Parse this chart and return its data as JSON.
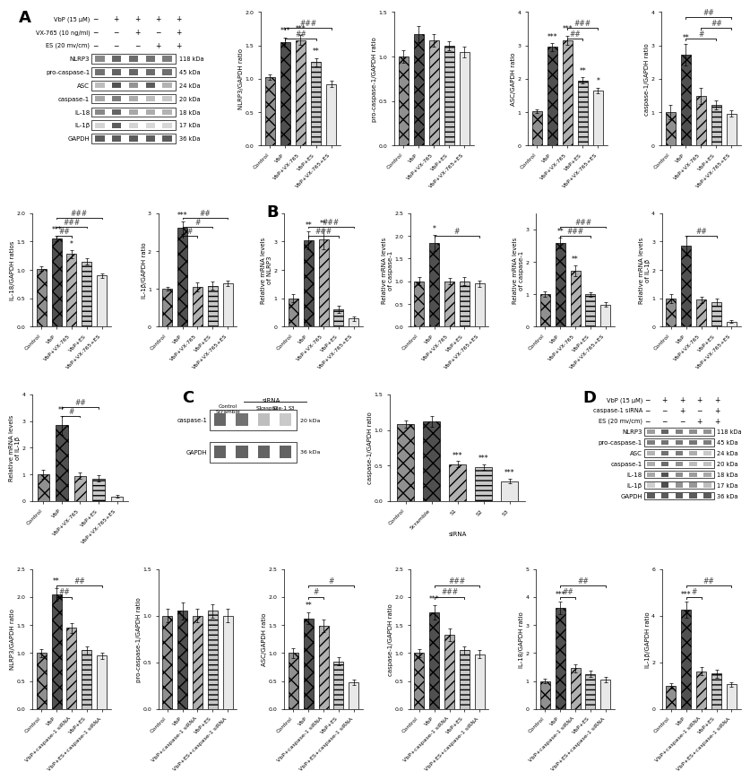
{
  "treatment_rows_A": [
    "VbP (15 μM)",
    "VX-765 (10 ng/ml)",
    "ES (20 mv/cm)"
  ],
  "treatment_signs_A": [
    [
      "−",
      "+",
      "+",
      "+",
      "+"
    ],
    [
      "−",
      "−",
      "+",
      "−",
      "+"
    ],
    [
      "−",
      "−",
      "−",
      "+",
      "+"
    ]
  ],
  "wb_labels_A": [
    "NLRP3",
    "pro-caspase-1",
    "ASC",
    "caspase-1",
    "IL-18",
    "IL-1β",
    "GAPDH"
  ],
  "wb_kdas_A": [
    "118 kDa",
    "45 kDa",
    "24 kDa",
    "20 kDa",
    "18 kDa",
    "17 kDa",
    "36 kDa"
  ],
  "cats5": [
    "Control",
    "VbP",
    "VbP+VX-765",
    "VbP+ES",
    "VbP+VX-765+ES"
  ],
  "NLRP3_vals": [
    1.02,
    1.55,
    1.58,
    1.25,
    0.92
  ],
  "NLRP3_errs": [
    0.04,
    0.07,
    0.07,
    0.06,
    0.05
  ],
  "NLRP3_ylim": [
    0.0,
    2.0
  ],
  "NLRP3_yticks": [
    0.0,
    0.5,
    1.0,
    1.5,
    2.0
  ],
  "NLRP3_ylabel": "NLRP3/GAPDH ratio",
  "NLRP3_sig_above": [
    [
      1,
      "***"
    ],
    [
      2,
      "***"
    ],
    [
      3,
      "**"
    ]
  ],
  "NLRP3_brackets": [
    [
      1,
      3,
      "##"
    ],
    [
      1,
      4,
      "###"
    ]
  ],
  "procasp1_vals": [
    1.0,
    1.25,
    1.18,
    1.12,
    1.05
  ],
  "procasp1_errs": [
    0.07,
    0.09,
    0.07,
    0.05,
    0.06
  ],
  "procasp1_ylim": [
    0.0,
    1.5
  ],
  "procasp1_yticks": [
    0.0,
    0.5,
    1.0,
    1.5
  ],
  "procasp1_ylabel": "pro-caspase-1/GAPDH ratio",
  "procasp1_sig_above": [],
  "procasp1_brackets": [],
  "ASC_vals": [
    1.02,
    2.95,
    3.15,
    1.95,
    1.65
  ],
  "ASC_errs": [
    0.05,
    0.11,
    0.14,
    0.09,
    0.08
  ],
  "ASC_ylim": [
    0.0,
    4.0
  ],
  "ASC_yticks": [
    0,
    1,
    2,
    3,
    4
  ],
  "ASC_ylabel": "ASC/GAPDH ratio",
  "ASC_sig_above": [
    [
      1,
      "***"
    ],
    [
      2,
      "***"
    ],
    [
      3,
      "**"
    ],
    [
      4,
      "*"
    ]
  ],
  "ASC_brackets": [
    [
      2,
      3,
      "##"
    ],
    [
      2,
      4,
      "###"
    ]
  ],
  "casp1A_vals": [
    1.0,
    2.72,
    1.48,
    1.22,
    0.95
  ],
  "casp1A_errs": [
    0.22,
    0.32,
    0.25,
    0.13,
    0.09
  ],
  "casp1A_ylim": [
    0.0,
    4.0
  ],
  "casp1A_yticks": [
    0,
    1,
    2,
    3,
    4
  ],
  "casp1A_ylabel": "caspase-1/GAPDH ratio",
  "casp1A_sig_above": [
    [
      1,
      "**"
    ]
  ],
  "casp1A_brackets": [
    [
      1,
      3,
      "#"
    ],
    [
      2,
      4,
      "##"
    ],
    [
      1,
      4,
      "##"
    ]
  ],
  "IL18_vals": [
    1.02,
    1.55,
    1.28,
    1.15,
    0.9
  ],
  "IL18_errs": [
    0.04,
    0.05,
    0.07,
    0.06,
    0.04
  ],
  "IL18_ylim": [
    0.0,
    2.0
  ],
  "IL18_yticks": [
    0.0,
    0.5,
    1.0,
    1.5,
    2.0
  ],
  "IL18_ylabel": "IL-18/GAPDH ratios",
  "IL18_sig_above": [
    [
      1,
      "***"
    ],
    [
      2,
      "*"
    ]
  ],
  "IL18_brackets": [
    [
      1,
      2,
      "##"
    ],
    [
      1,
      3,
      "###"
    ],
    [
      1,
      4,
      "###"
    ]
  ],
  "IL1b_vals": [
    1.0,
    2.62,
    1.05,
    1.08,
    1.15
  ],
  "IL1b_errs": [
    0.04,
    0.16,
    0.11,
    0.11,
    0.07
  ],
  "IL1b_ylim": [
    0.0,
    3.0
  ],
  "IL1b_yticks": [
    0,
    1,
    2,
    3
  ],
  "IL1b_ylabel": "IL-1β/GAPDH ratio",
  "IL1b_sig_above": [
    [
      1,
      "***"
    ]
  ],
  "IL1b_brackets": [
    [
      1,
      2,
      "#"
    ],
    [
      1,
      3,
      "#"
    ],
    [
      1,
      4,
      "##"
    ]
  ],
  "mNLRP3_vals": [
    1.0,
    3.05,
    3.08,
    0.62,
    0.28
  ],
  "mNLRP3_errs": [
    0.15,
    0.32,
    0.35,
    0.13,
    0.07
  ],
  "mNLRP3_ylim": [
    0.0,
    4.0
  ],
  "mNLRP3_yticks": [
    0,
    1,
    2,
    3,
    4
  ],
  "mNLRP3_ylabel": "Relative mRNA levels\nof NLRP3",
  "mNLRP3_sig_above": [
    [
      1,
      "**"
    ],
    [
      2,
      "**"
    ]
  ],
  "mNLRP3_brackets": [
    [
      1,
      3,
      "###"
    ],
    [
      1,
      4,
      "###"
    ]
  ],
  "mcasp1_vals": [
    1.0,
    1.85,
    1.0,
    1.0,
    0.95
  ],
  "mcasp1_errs": [
    0.09,
    0.18,
    0.07,
    0.09,
    0.07
  ],
  "mcasp1_ylim": [
    0.0,
    2.5
  ],
  "mcasp1_yticks": [
    0.0,
    0.5,
    1.0,
    1.5,
    2.0,
    2.5
  ],
  "mcasp1_ylabel": "Relative mRNA levels\nof caspase-1",
  "mcasp1_sig_above": [
    [
      1,
      "*"
    ]
  ],
  "mcasp1_brackets": [
    [
      1,
      4,
      "#"
    ]
  ],
  "mIL18_vals": [
    1.0,
    2.58,
    1.72,
    1.0,
    0.68
  ],
  "mIL18_errs": [
    0.09,
    0.16,
    0.16,
    0.07,
    0.07
  ],
  "mIL18_ylim": [
    0.0,
    3.5
  ],
  "mIL18_yticks": [
    0,
    1,
    2,
    3
  ],
  "mIL18_ylabel": "Relative mRNA levels\nof caspase-1",
  "mIL18_sig_above": [
    [
      1,
      "**"
    ],
    [
      2,
      "**"
    ]
  ],
  "mIL18_brackets": [
    [
      1,
      3,
      "###"
    ],
    [
      1,
      4,
      "###"
    ]
  ],
  "mIL1b_vals": [
    1.0,
    2.85,
    0.95,
    0.85,
    0.18
  ],
  "mIL1b_errs": [
    0.16,
    0.35,
    0.11,
    0.13,
    0.04
  ],
  "mIL1b_ylim": [
    0.0,
    4.0
  ],
  "mIL1b_yticks": [
    0,
    1,
    2,
    3,
    4
  ],
  "mIL1b_ylabel": "Relative mRNA levels\nof IL-1β",
  "mIL1b_sig_above": [],
  "mIL1b_brackets": [
    [
      1,
      3,
      "##"
    ]
  ],
  "mIL1b2_vals": [
    1.0,
    2.85,
    0.95,
    0.85,
    0.18
  ],
  "mIL1b2_errs": [
    0.16,
    0.35,
    0.11,
    0.13,
    0.04
  ],
  "mIL1b2_ylim": [
    0.0,
    4.0
  ],
  "mIL1b2_yticks": [
    0,
    1,
    2,
    3,
    4
  ],
  "mIL1b2_ylabel": "Relative mRNA levels\nof IL-1β",
  "mIL1b2_sig_above": [
    [
      1,
      "**"
    ]
  ],
  "mIL1b2_brackets": [
    [
      1,
      2,
      "#"
    ],
    [
      1,
      3,
      "##"
    ]
  ],
  "siRNA_cats": [
    "Control",
    "Scramble",
    "S1",
    "S2",
    "S3"
  ],
  "siRNA_vals": [
    1.08,
    1.12,
    0.52,
    0.48,
    0.28
  ],
  "siRNA_errs": [
    0.05,
    0.07,
    0.04,
    0.04,
    0.03
  ],
  "siRNA_ylim": [
    0.0,
    1.5
  ],
  "siRNA_yticks": [
    0.0,
    0.5,
    1.0,
    1.5
  ],
  "siRNA_ylabel": "caspase-1/GAPDH ratio",
  "siRNA_sig_above": [
    [
      2,
      "***"
    ],
    [
      3,
      "***"
    ],
    [
      4,
      "***"
    ]
  ],
  "siRNA_brackets": [],
  "treatment_rows_D": [
    "VbP (15 μM)",
    "caspase-1 siRNA",
    "ES (20 mv/cm)"
  ],
  "treatment_signs_D": [
    [
      "−",
      "+",
      "+",
      "+",
      "+"
    ],
    [
      "−",
      "−",
      "+",
      "−",
      "+"
    ],
    [
      "−",
      "−",
      "−",
      "+",
      "+"
    ]
  ],
  "wb_labels_D": [
    "NLRP3",
    "pro-caspase-1",
    "ASC",
    "caspase-1",
    "IL-18",
    "IL-1β",
    "GAPDH"
  ],
  "wb_kdas_D": [
    "118 kDa",
    "45 kDa",
    "24 kDa",
    "20 kDa",
    "18 kDa",
    "17 kDa",
    "36 kDa"
  ],
  "catsD": [
    "Control",
    "VbP",
    "VbP+caspase-1 siRNA",
    "VbP+ES",
    "VbP+ES+caspase-1 siRNA"
  ],
  "D_NLRP3_vals": [
    1.0,
    2.05,
    1.45,
    1.05,
    0.95
  ],
  "D_NLRP3_errs": [
    0.07,
    0.11,
    0.09,
    0.07,
    0.06
  ],
  "D_NLRP3_ylim": [
    0.0,
    2.5
  ],
  "D_NLRP3_yticks": [
    0.0,
    0.5,
    1.0,
    1.5,
    2.0,
    2.5
  ],
  "D_NLRP3_ylabel": "NLRP3/GAPDH ratio",
  "D_NLRP3_sig_above": [
    [
      1,
      "**"
    ]
  ],
  "D_NLRP3_brackets": [
    [
      1,
      2,
      "##"
    ],
    [
      1,
      4,
      "##"
    ]
  ],
  "D_pro_vals": [
    1.0,
    1.05,
    1.0,
    1.05,
    1.0
  ],
  "D_pro_errs": [
    0.07,
    0.09,
    0.07,
    0.07,
    0.07
  ],
  "D_pro_ylim": [
    0.0,
    1.5
  ],
  "D_pro_yticks": [
    0.0,
    0.5,
    1.0,
    1.5
  ],
  "D_pro_ylabel": "pro-caspase-1/GAPDH ratio",
  "D_pro_sig_above": [],
  "D_pro_brackets": [],
  "D_ASC_vals": [
    1.0,
    1.62,
    1.48,
    0.85,
    0.48
  ],
  "D_ASC_errs": [
    0.09,
    0.11,
    0.11,
    0.07,
    0.05
  ],
  "D_ASC_ylim": [
    0.0,
    2.5
  ],
  "D_ASC_yticks": [
    0.0,
    0.5,
    1.0,
    1.5,
    2.0,
    2.5
  ],
  "D_ASC_ylabel": "ASC/GAPDH ratio",
  "D_ASC_sig_above": [
    [
      1,
      "**"
    ]
  ],
  "D_ASC_brackets": [
    [
      1,
      2,
      "#"
    ],
    [
      1,
      4,
      "#"
    ]
  ],
  "D_casp1_vals": [
    1.0,
    1.72,
    1.32,
    1.05,
    0.98
  ],
  "D_casp1_errs": [
    0.07,
    0.13,
    0.11,
    0.07,
    0.07
  ],
  "D_casp1_ylim": [
    0.0,
    2.5
  ],
  "D_casp1_yticks": [
    0.0,
    0.5,
    1.0,
    1.5,
    2.0,
    2.5
  ],
  "D_casp1_ylabel": "caspase-1/GAPDH ratio",
  "D_casp1_sig_above": [
    [
      1,
      "***"
    ]
  ],
  "D_casp1_brackets": [
    [
      1,
      3,
      "###"
    ],
    [
      1,
      4,
      "###"
    ]
  ],
  "D_IL18_vals": [
    1.0,
    3.62,
    1.45,
    1.25,
    1.05
  ],
  "D_IL18_errs": [
    0.09,
    0.22,
    0.13,
    0.11,
    0.09
  ],
  "D_IL18_ylim": [
    0.0,
    5.0
  ],
  "D_IL18_yticks": [
    0,
    1,
    2,
    3,
    4,
    5
  ],
  "D_IL18_ylabel": "IL-18/GAPDH ratio",
  "D_IL18_sig_above": [
    [
      1,
      "***"
    ]
  ],
  "D_IL18_brackets": [
    [
      1,
      2,
      "##"
    ],
    [
      1,
      4,
      "##"
    ]
  ],
  "D_IL1b_vals": [
    1.0,
    4.25,
    1.62,
    1.52,
    1.05
  ],
  "D_IL1b_errs": [
    0.11,
    0.35,
    0.16,
    0.18,
    0.11
  ],
  "D_IL1b_ylim": [
    0.0,
    6.0
  ],
  "D_IL1b_yticks": [
    0,
    2,
    4,
    6
  ],
  "D_IL1b_ylabel": "IL-1β/GAPDH ratio",
  "D_IL1b_sig_above": [
    [
      1,
      "***"
    ]
  ],
  "D_IL1b_brackets": [
    [
      1,
      2,
      "#"
    ],
    [
      1,
      4,
      "##"
    ]
  ]
}
